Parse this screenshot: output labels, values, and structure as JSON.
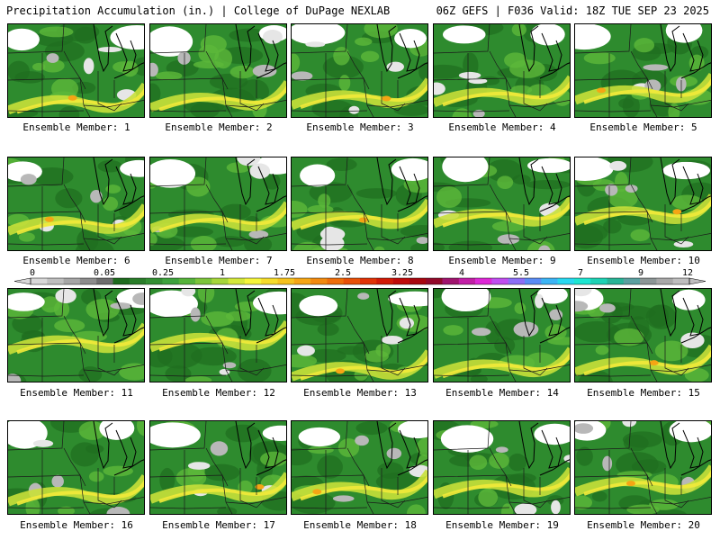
{
  "header": {
    "left": "Precipitation Accumulation (in.) | College of DuPage NEXLAB",
    "right": "06Z GEFS | F036 Valid: 18Z TUE SEP 23 2025"
  },
  "panels": [
    {
      "label": "Ensemble Member: 1"
    },
    {
      "label": "Ensemble Member: 2"
    },
    {
      "label": "Ensemble Member: 3"
    },
    {
      "label": "Ensemble Member: 4"
    },
    {
      "label": "Ensemble Member: 5"
    },
    {
      "label": "Ensemble Member: 6"
    },
    {
      "label": "Ensemble Member: 7"
    },
    {
      "label": "Ensemble Member: 8"
    },
    {
      "label": "Ensemble Member: 9"
    },
    {
      "label": "Ensemble Member: 10"
    },
    {
      "label": "Ensemble Member: 11"
    },
    {
      "label": "Ensemble Member: 12"
    },
    {
      "label": "Ensemble Member: 13"
    },
    {
      "label": "Ensemble Member: 14"
    },
    {
      "label": "Ensemble Member: 15"
    },
    {
      "label": "Ensemble Member: 16"
    },
    {
      "label": "Ensemble Member: 17"
    },
    {
      "label": "Ensemble Member: 18"
    },
    {
      "label": "Ensemble Member: 19"
    },
    {
      "label": "Ensemble Member: 20"
    }
  ],
  "colorbar": {
    "ticks": [
      "0",
      "0.05",
      "0.25",
      "1",
      "1.75",
      "2.5",
      "3.25",
      "4",
      "5.5",
      "7",
      "9",
      "12"
    ],
    "colors": [
      "#d8d8d8",
      "#bfbfbf",
      "#a6a6a6",
      "#8c8c8c",
      "#6e6e6e",
      "#1e6b1e",
      "#2a7d2a",
      "#338f33",
      "#3da33d",
      "#56b33a",
      "#7cc43a",
      "#a6d63a",
      "#d4e83a",
      "#f5f53a",
      "#f5dc2a",
      "#f5c21e",
      "#f5a514",
      "#f28a0f",
      "#ee6e0a",
      "#e85008",
      "#e03206",
      "#d11a06",
      "#bf0a0a",
      "#a8070f",
      "#920a2a",
      "#a0146e",
      "#c21ea6",
      "#dd28d6",
      "#c04ef0",
      "#8c6ef5",
      "#5a8cf5",
      "#3cb4f5",
      "#28d8f0",
      "#1ee6d2",
      "#1ed2b4",
      "#28b496",
      "#5aa0a0",
      "#8c9696",
      "#a8a8a8",
      "#bebebe"
    ]
  }
}
